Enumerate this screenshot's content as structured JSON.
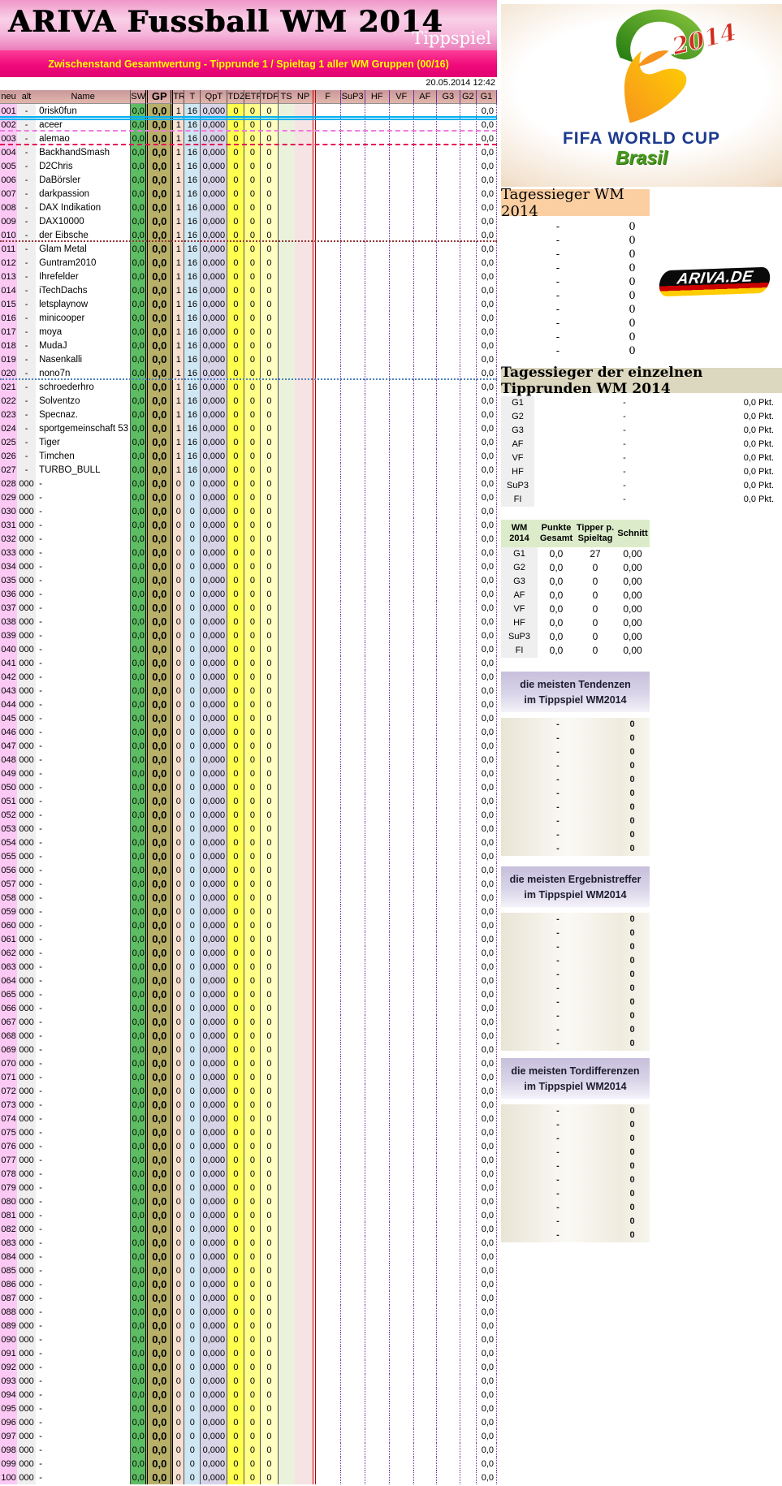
{
  "banner": {
    "title": "ARIVA Fussball WM 2014",
    "badge": "Tippspiel"
  },
  "subtitle": "Zwischenstand Gesamtwertung - Tipprunde 1 / Spieltag 1 aller WM Gruppen (00/16)",
  "timestamp": "20.05.2014 12:42",
  "colors": {
    "bar_magenta": "#f00a7a",
    "bar_text": "#ffff00",
    "red_separator": "#c00000",
    "divider_cyan": "#00b0f0",
    "fifa_blue": "#1d3a8f",
    "brasil_green": "#47991c"
  },
  "table": {
    "columns": [
      "neu",
      "alt",
      "Name",
      "SW",
      "GP",
      "TR",
      "T",
      "QpT",
      "TDZ",
      "ETF",
      "TDF",
      "TS",
      "NP",
      "F",
      "SuP3",
      "HF",
      "VF",
      "AF",
      "G3",
      "G2",
      "G1"
    ],
    "players": [
      "0risk0fun",
      "aceer",
      "alemao",
      "BackhandSmash",
      "D2Chris",
      "DaBörsler",
      "darkpassion",
      "DAX Indikation",
      "DAX10000",
      "der Eibsche",
      "Glam Metal",
      "Guntram2010",
      "Ihrefelder",
      "iTechDachs",
      "letsplaynow",
      "minicooper",
      "moya",
      "MudaJ",
      "Nasenkalli",
      "nono7n",
      "schroederhro",
      "Solventzo",
      "Specnaz.",
      "sportgemeinschaft 53",
      "Tiger",
      "Timchen",
      "TURBO_BULL"
    ],
    "total_rows": 100,
    "active_row": {
      "alt": "-",
      "sw": "0,0",
      "gp": "0,0",
      "tr": "1",
      "t": "16",
      "qpt": "0,000",
      "tdz": "0",
      "etf": "0",
      "tdf": "0",
      "ts": "",
      "np": "",
      "f": "",
      "sup3": "",
      "hf": "",
      "vf": "",
      "af": "",
      "g3": "",
      "g2": "",
      "g1": "0,0"
    },
    "empty_row": {
      "alt": "000",
      "name": "-",
      "sw": "0,0",
      "gp": "0,0",
      "tr": "0",
      "t": "0",
      "qpt": "0,000",
      "tdz": "0",
      "etf": "0",
      "tdf": "0",
      "ts": "",
      "np": "",
      "f": "",
      "sup3": "",
      "hf": "",
      "vf": "",
      "af": "",
      "g3": "",
      "g2": "",
      "g1": "0,0"
    }
  },
  "fifa_logo": {
    "year": "2014",
    "line1": "FIFA WORLD CUP",
    "line2": "Brasil"
  },
  "ariva_logo": {
    "label": "ARIVA.DE"
  },
  "tagessieger": {
    "title": "Tagessieger WM 2014",
    "rows": [
      {
        "name": "-",
        "value": "0"
      },
      {
        "name": "-",
        "value": "0"
      },
      {
        "name": "-",
        "value": "0"
      },
      {
        "name": "-",
        "value": "0"
      },
      {
        "name": "-",
        "value": "0"
      },
      {
        "name": "-",
        "value": "0"
      },
      {
        "name": "-",
        "value": "0"
      },
      {
        "name": "-",
        "value": "0"
      },
      {
        "name": "-",
        "value": "0"
      },
      {
        "name": "-",
        "value": "0"
      }
    ]
  },
  "tipprunden": {
    "title": "Tagessieger der einzelnen Tipprunden WM 2014",
    "rows": [
      {
        "label": "G1",
        "winner": "-",
        "points": "0,0 Pkt."
      },
      {
        "label": "G2",
        "winner": "-",
        "points": "0,0 Pkt."
      },
      {
        "label": "G3",
        "winner": "-",
        "points": "0,0 Pkt."
      },
      {
        "label": "AF",
        "winner": "-",
        "points": "0,0 Pkt."
      },
      {
        "label": "VF",
        "winner": "-",
        "points": "0,0 Pkt."
      },
      {
        "label": "HF",
        "winner": "-",
        "points": "0,0 Pkt."
      },
      {
        "label": "SuP3",
        "winner": "-",
        "points": "0,0 Pkt."
      },
      {
        "label": "FI",
        "winner": "-",
        "points": "0,0 Pkt."
      }
    ]
  },
  "stats": {
    "headers": [
      [
        "WM",
        "2014"
      ],
      [
        "Punkte",
        "Gesamt"
      ],
      [
        "Tipper p.",
        "Spieltag"
      ],
      [
        "Schnitt",
        ""
      ]
    ],
    "rows": [
      [
        "G1",
        "0,0",
        "27",
        "0,00"
      ],
      [
        "G2",
        "0,0",
        "0",
        "0,00"
      ],
      [
        "G3",
        "0,0",
        "0",
        "0,00"
      ],
      [
        "AF",
        "0,0",
        "0",
        "0,00"
      ],
      [
        "VF",
        "0,0",
        "0",
        "0,00"
      ],
      [
        "HF",
        "0,0",
        "0",
        "0,00"
      ],
      [
        "SuP3",
        "0,0",
        "0",
        "0,00"
      ],
      [
        "FI",
        "0,0",
        "0",
        "0,00"
      ]
    ]
  },
  "sections": [
    {
      "title_line1": "die meisten Tendenzen",
      "title_line2": "im Tippspiel WM2014",
      "rows": [
        {
          "name": "-",
          "value": "0"
        },
        {
          "name": "-",
          "value": "0"
        },
        {
          "name": "-",
          "value": "0"
        },
        {
          "name": "-",
          "value": "0"
        },
        {
          "name": "-",
          "value": "0"
        },
        {
          "name": "-",
          "value": "0"
        },
        {
          "name": "-",
          "value": "0"
        },
        {
          "name": "-",
          "value": "0"
        },
        {
          "name": "-",
          "value": "0"
        },
        {
          "name": "-",
          "value": "0"
        }
      ]
    },
    {
      "title_line1": "die meisten Ergebnistreffer",
      "title_line2": "im Tippspiel WM2014",
      "rows": [
        {
          "name": "-",
          "value": "0"
        },
        {
          "name": "-",
          "value": "0"
        },
        {
          "name": "-",
          "value": "0"
        },
        {
          "name": "-",
          "value": "0"
        },
        {
          "name": "-",
          "value": "0"
        },
        {
          "name": "-",
          "value": "0"
        },
        {
          "name": "-",
          "value": "0"
        },
        {
          "name": "-",
          "value": "0"
        },
        {
          "name": "-",
          "value": "0"
        },
        {
          "name": "-",
          "value": "0"
        }
      ]
    },
    {
      "title_line1": "die meisten Tordifferenzen",
      "title_line2": "im Tippspiel WM2014",
      "rows": [
        {
          "name": "-",
          "value": "0"
        },
        {
          "name": "-",
          "value": "0"
        },
        {
          "name": "-",
          "value": "0"
        },
        {
          "name": "-",
          "value": "0"
        },
        {
          "name": "-",
          "value": "0"
        },
        {
          "name": "-",
          "value": "0"
        },
        {
          "name": "-",
          "value": "0"
        },
        {
          "name": "-",
          "value": "0"
        },
        {
          "name": "-",
          "value": "0"
        },
        {
          "name": "-",
          "value": "0"
        }
      ]
    }
  ]
}
